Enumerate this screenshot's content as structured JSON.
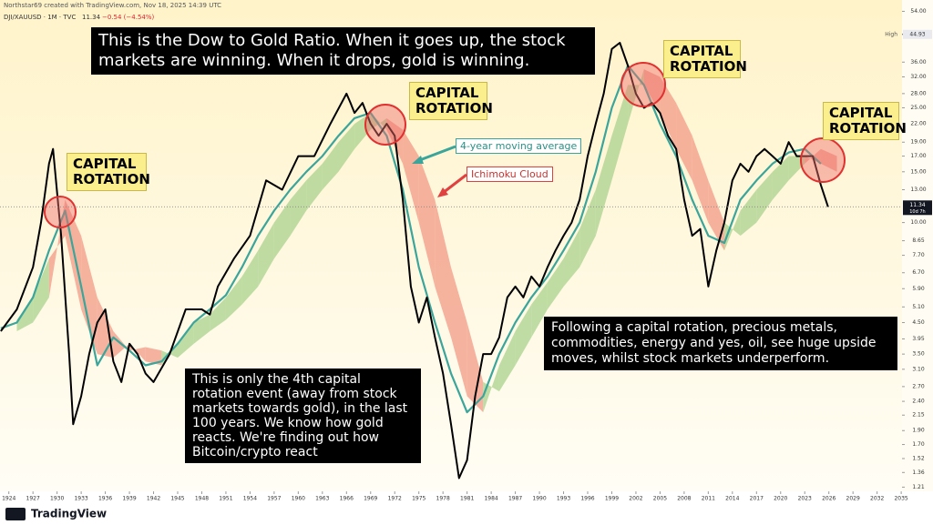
{
  "header": {
    "author_line": "Northstar69 created with TradingView.com, Nov 18, 2025 14:39 UTC",
    "symbol": "DJI/XAUUSD · 1M · TVC",
    "last": 11.34,
    "change": "−0.54 (−4.54%)"
  },
  "chart_data": {
    "type": "line",
    "log_y": true,
    "xlim": [
      1922.9,
      2035.1
    ],
    "ylim": [
      1.17,
      57
    ],
    "xticks": [
      1924,
      1927,
      1930,
      1933,
      1936,
      1939,
      1942,
      1945,
      1948,
      1951,
      1954,
      1957,
      1960,
      1963,
      1966,
      1969,
      1972,
      1975,
      1978,
      1981,
      1984,
      1987,
      1990,
      1993,
      1996,
      1999,
      2002,
      2005,
      2008,
      2011,
      2014,
      2017,
      2020,
      2023,
      2026,
      2029,
      2032,
      2035
    ],
    "yticks": [
      {
        "value": 54,
        "label": "54.00"
      },
      {
        "value": 36,
        "label": "36.00"
      },
      {
        "value": 32,
        "label": "32.00"
      },
      {
        "value": 28,
        "label": "28.00"
      },
      {
        "value": 25,
        "label": "25.00"
      },
      {
        "value": 22,
        "label": "22.00"
      },
      {
        "value": 19,
        "label": "19.00"
      },
      {
        "value": 17,
        "label": "17.00"
      },
      {
        "value": 15,
        "label": "15.00"
      },
      {
        "value": 13,
        "label": "13.00"
      },
      {
        "value": 10,
        "label": "10.00"
      },
      {
        "value": 8.65,
        "label": "8.65"
      },
      {
        "value": 7.7,
        "label": "7.70"
      },
      {
        "value": 6.7,
        "label": "6.70"
      },
      {
        "value": 5.9,
        "label": "5.90"
      },
      {
        "value": 5.1,
        "label": "5.10"
      },
      {
        "value": 4.5,
        "label": "4.50"
      },
      {
        "value": 3.95,
        "label": "3.95"
      },
      {
        "value": 3.5,
        "label": "3.50"
      },
      {
        "value": 3.1,
        "label": "3.10"
      },
      {
        "value": 2.7,
        "label": "2.70"
      },
      {
        "value": 2.4,
        "label": "2.40"
      },
      {
        "value": 2.15,
        "label": "2.15"
      },
      {
        "value": 1.9,
        "label": "1.90"
      },
      {
        "value": 1.7,
        "label": "1.70"
      },
      {
        "value": 1.52,
        "label": "1.52"
      },
      {
        "value": 1.36,
        "label": "1.36"
      },
      {
        "value": 1.21,
        "label": "1.21"
      }
    ],
    "high_label": "High",
    "high_value": 44.93,
    "last_value": 11.34,
    "countdown": "10d 7h",
    "series": [
      {
        "color": "#000000",
        "x": [
          1923,
          1925,
          1927,
          1928,
          1929,
          1929.5,
          1930.5,
          1931.5,
          1932,
          1933,
          1934,
          1935,
          1936,
          1937,
          1938,
          1939,
          1940,
          1941,
          1942,
          1944,
          1946,
          1948,
          1949,
          1950,
          1952,
          1954,
          1956,
          1958,
          1960,
          1962,
          1964,
          1966,
          1966.5,
          1967,
          1968,
          1969,
          1970,
          1971,
          1972,
          1973,
          1974,
          1975,
          1976,
          1977,
          1978,
          1979,
          1980,
          1981,
          1982,
          1983,
          1984,
          1985,
          1986,
          1987,
          1988,
          1989,
          1990,
          1991,
          1992,
          1993,
          1994,
          1995,
          1996,
          1997,
          1998,
          1999,
          2000,
          2001,
          2002,
          2003,
          2004,
          2005,
          2006,
          2007,
          2008,
          2009,
          2010,
          2011,
          2012,
          2013,
          2014,
          2015,
          2016,
          2017,
          2018,
          2019,
          2020,
          2021,
          2022,
          2023,
          2024,
          2025,
          2025.9
        ],
        "values": [
          4.2,
          5.0,
          7.0,
          10,
          16,
          18,
          9,
          3.5,
          2.0,
          2.5,
          3.5,
          4.5,
          5.0,
          3.3,
          2.8,
          3.8,
          3.5,
          3.0,
          2.8,
          3.5,
          5.0,
          5.0,
          4.8,
          6.0,
          7.5,
          9.0,
          14,
          13,
          17,
          17,
          22,
          28,
          26,
          24,
          26,
          22,
          20,
          22,
          20,
          12,
          6,
          4.5,
          5.5,
          4.0,
          3.0,
          2.0,
          1.3,
          1.5,
          2.5,
          3.5,
          3.5,
          4.0,
          5.5,
          6.0,
          5.5,
          6.5,
          6.0,
          7.0,
          8.0,
          9.0,
          10,
          12,
          17,
          22,
          28,
          40,
          42,
          35,
          28,
          25,
          26,
          24,
          20,
          18,
          12,
          9,
          9.5,
          6.0,
          8,
          10,
          14,
          16,
          15,
          17,
          18,
          17,
          16,
          19,
          17,
          17,
          17,
          13.5,
          11.34
        ]
      },
      {
        "color": "#3aa59a",
        "x": [
          1923,
          1925,
          1927,
          1929,
          1931,
          1933,
          1935,
          1937,
          1939,
          1941,
          1943,
          1945,
          1947,
          1949,
          1951,
          1953,
          1955,
          1957,
          1959,
          1961,
          1963,
          1965,
          1967,
          1969,
          1971,
          1973,
          1975,
          1977,
          1979,
          1981,
          1983,
          1985,
          1987,
          1989,
          1991,
          1993,
          1995,
          1997,
          1999,
          2001,
          2003,
          2005,
          2007,
          2009,
          2011,
          2013,
          2015,
          2017,
          2019,
          2021,
          2023,
          2025
        ],
        "values": [
          4.3,
          4.5,
          5.5,
          8,
          11,
          6,
          3.2,
          4.0,
          3.6,
          3.2,
          3.3,
          3.8,
          4.5,
          5,
          5.6,
          7,
          9,
          11,
          13,
          15,
          17,
          20,
          23,
          24,
          20,
          13,
          7,
          4.5,
          3,
          2.2,
          2.5,
          3.5,
          4.5,
          5.5,
          6.5,
          8,
          10,
          15,
          25,
          35,
          30,
          22,
          17,
          12,
          9,
          8.5,
          12,
          14,
          16,
          17.5,
          18,
          16
        ]
      }
    ],
    "cloud": {
      "up_color": "#a9d28e",
      "down_color": "#f29a86",
      "x": [
        1925,
        1927,
        1929,
        1931,
        1933,
        1935,
        1937,
        1939,
        1941,
        1943,
        1945,
        1947,
        1949,
        1951,
        1953,
        1955,
        1957,
        1959,
        1961,
        1963,
        1965,
        1967,
        1969,
        1971,
        1973,
        1975,
        1977,
        1979,
        1981,
        1983,
        1985,
        1987,
        1989,
        1991,
        1993,
        1995,
        1997,
        1999,
        2001,
        2003,
        2005,
        2007,
        2009,
        2011,
        2013,
        2015,
        2017,
        2019,
        2021,
        2023,
        2025,
        2027
      ],
      "span_a": [
        4.6,
        5.5,
        7.5,
        9,
        5,
        3.5,
        3.4,
        3.8,
        3.3,
        3.2,
        3.8,
        4.5,
        4.8,
        5.5,
        6.5,
        8,
        10,
        12,
        14,
        16,
        19,
        22,
        24,
        21,
        16,
        10,
        6,
        4,
        2.5,
        2.2,
        3.2,
        4.2,
        5.2,
        6.2,
        7.5,
        9.5,
        13,
        20,
        30,
        30,
        24,
        18,
        14,
        10,
        8,
        11,
        13,
        15,
        17,
        17,
        16,
        15
      ],
      "span_b": [
        4.2,
        4.5,
        5.5,
        12,
        9,
        5.5,
        4.2,
        3.6,
        3.7,
        3.6,
        3.4,
        3.8,
        4.2,
        4.6,
        5.2,
        6,
        7.5,
        9,
        11,
        13,
        15,
        18,
        21,
        23,
        21,
        17,
        12,
        7,
        4.5,
        2.8,
        2.6,
        3.2,
        4.0,
        5.0,
        6,
        7,
        9,
        14,
        22,
        34,
        32,
        26,
        20,
        14,
        10,
        9,
        10,
        12,
        14,
        16,
        18,
        17
      ]
    },
    "annotations": {
      "ma_label": "4-year moving average",
      "cloud_label": "Ichimoku Cloud",
      "rotation_labels": [
        "CAPITAL ROTATION",
        "CAPITAL ROTATION",
        "CAPITAL ROTATION",
        "CAPITAL ROTATION"
      ],
      "title_box": "This is the Dow to Gold Ratio. When it goes up, the stock markets are winning. When it drops, gold is winning.",
      "left_box": "This is only the 4th capital rotation event (away from stock markets towards gold), in the last 100 years. We know how gold reacts. We're finding out how Bitcoin/crypto react",
      "right_box": "Following a capital rotation, precious metals, commodities, energy and yes, oil, see huge upside moves, whilst stock markets underperform."
    }
  },
  "footer": {
    "brand": "TradingView"
  }
}
